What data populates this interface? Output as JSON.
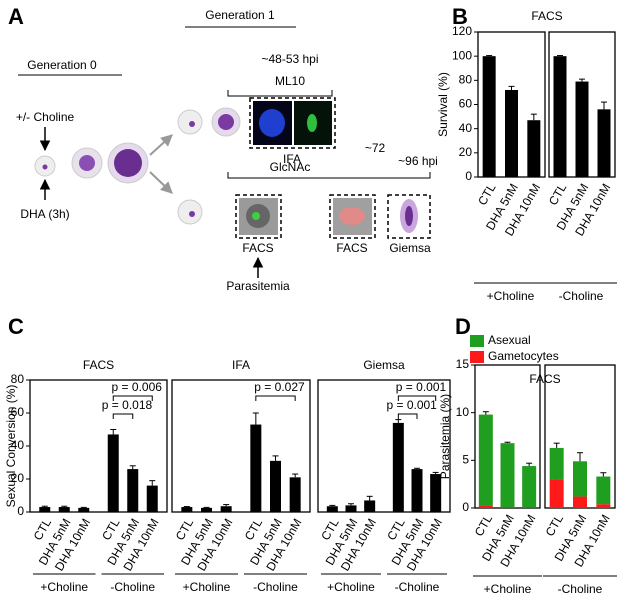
{
  "panel_labels": [
    "A",
    "B",
    "C",
    "D"
  ],
  "diagram": {
    "generation_0": "Generation 0",
    "generation_1": "Generation 1",
    "choline": "+/- Choline",
    "dha": "DHA (3h)",
    "time_1": "~48-53 hpi",
    "ml10": "ML10",
    "ifa": "IFA",
    "glcnac": "GlcNAc",
    "time_2": "~72",
    "time_3": "~96 hpi",
    "facs_1": "FACS",
    "facs_2": "FACS",
    "giemsa": "Giemsa",
    "parasitemia": "Parasitemia"
  },
  "chart_data": [
    {
      "type": "bar",
      "title": "FACS",
      "y_label": "Survival (%)",
      "ylim": [
        0,
        120
      ],
      "yticks": [
        0,
        20,
        40,
        60,
        80,
        100,
        120
      ],
      "color": "#000000",
      "categories": [
        "CTL",
        "DHA 5nM",
        "DHA 10nM"
      ],
      "groups": [
        {
          "name": "+Choline",
          "values": [
            100,
            72,
            47
          ],
          "errors": [
            0.5,
            3,
            5
          ]
        },
        {
          "name": "-Choline",
          "values": [
            100,
            79,
            56
          ],
          "errors": [
            0.5,
            2,
            6
          ]
        }
      ]
    },
    {
      "type": "bar",
      "y_label": "Sexual Conversion (%)",
      "ylim": [
        0,
        80
      ],
      "yticks": [
        0,
        20,
        40,
        60,
        80
      ],
      "color": "#000000",
      "categories": [
        "CTL",
        "DHA 5nM",
        "DHA 10nM"
      ],
      "panels": [
        {
          "title": "FACS",
          "annotations": [
            "p = 0.006",
            "p = 0.018"
          ],
          "groups": [
            {
              "name": "+Choline",
              "values": [
                3,
                3,
                2.5
              ],
              "errors": [
                0.5,
                0.5,
                0.3
              ]
            },
            {
              "name": "-Choline",
              "values": [
                47,
                26,
                16
              ],
              "errors": [
                3,
                2,
                3
              ]
            }
          ]
        },
        {
          "title": "IFA",
          "annotations": [
            "p = 0.027"
          ],
          "groups": [
            {
              "name": "+Choline",
              "values": [
                3,
                2.5,
                3.5
              ],
              "errors": [
                0.3,
                0.3,
                1
              ]
            },
            {
              "name": "-Choline",
              "values": [
                53,
                31,
                21
              ],
              "errors": [
                7,
                3,
                2
              ]
            }
          ]
        },
        {
          "title": "Giemsa",
          "annotations": [
            "p = 0.001",
            "p = 0.001"
          ],
          "groups": [
            {
              "name": "+Choline",
              "values": [
                3.5,
                4,
                7
              ],
              "errors": [
                0.5,
                1,
                2.5
              ]
            },
            {
              "name": "-Choline",
              "values": [
                54,
                26,
                23
              ],
              "errors": [
                2,
                0.5,
                1
              ]
            }
          ]
        }
      ]
    },
    {
      "type": "stacked_bar",
      "title": "FACS",
      "y_label": "Parasitemia (%)",
      "ylim": [
        0,
        15
      ],
      "yticks": [
        0,
        5,
        10,
        15
      ],
      "categories": [
        "CTL",
        "DHA 5nM",
        "DHA 10nM",
        "CTL",
        "DHA 5nM",
        "DHA 10nM"
      ],
      "groups": [
        "+Choline",
        "-Choline"
      ],
      "series": [
        {
          "name": "Asexual",
          "color": "#1f9e1f",
          "values": [
            9.5,
            6.7,
            4.3,
            3.3,
            3.7,
            2.9
          ],
          "errors": [
            0.3,
            0.1,
            0.3,
            0.5,
            0.9,
            0.4
          ]
        },
        {
          "name": "Gametocytes",
          "color": "#ff1a1a",
          "values": [
            0.3,
            0.1,
            0.1,
            3.0,
            1.2,
            0.4
          ],
          "errors": [
            0.1,
            0.05,
            0.05,
            0.9,
            0.2,
            0.1
          ]
        }
      ]
    }
  ]
}
